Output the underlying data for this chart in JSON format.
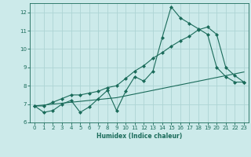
{
  "xlabel": "Humidex (Indice chaleur)",
  "x": [
    0,
    1,
    2,
    3,
    4,
    5,
    6,
    7,
    8,
    9,
    10,
    11,
    12,
    13,
    14,
    15,
    16,
    17,
    18,
    19,
    20,
    21,
    22,
    23
  ],
  "line1": [
    6.9,
    6.55,
    6.65,
    7.0,
    7.2,
    6.55,
    6.85,
    7.3,
    7.75,
    6.65,
    7.7,
    8.5,
    8.25,
    8.8,
    10.6,
    12.3,
    11.7,
    11.4,
    11.1,
    10.8,
    9.0,
    8.5,
    8.2,
    8.2
  ],
  "line2": [
    6.9,
    6.9,
    7.1,
    7.3,
    7.5,
    7.5,
    7.6,
    7.7,
    7.9,
    8.0,
    8.4,
    8.8,
    9.1,
    9.5,
    9.8,
    10.15,
    10.45,
    10.7,
    11.05,
    11.2,
    10.8,
    9.0,
    8.55,
    8.2
  ],
  "line3": [
    6.9,
    6.95,
    7.0,
    7.05,
    7.1,
    7.15,
    7.2,
    7.25,
    7.3,
    7.35,
    7.45,
    7.55,
    7.65,
    7.75,
    7.85,
    7.95,
    8.05,
    8.15,
    8.25,
    8.35,
    8.45,
    8.55,
    8.65,
    8.75
  ],
  "line_color": "#1a6b5a",
  "bg_color": "#cceaea",
  "grid_color": "#aed4d4",
  "ylim": [
    6,
    12.5
  ],
  "xlim": [
    -0.5,
    23.5
  ],
  "yticks": [
    6,
    7,
    8,
    9,
    10,
    11,
    12
  ],
  "xticks": [
    0,
    1,
    2,
    3,
    4,
    5,
    6,
    7,
    8,
    9,
    10,
    11,
    12,
    13,
    14,
    15,
    16,
    17,
    18,
    19,
    20,
    21,
    22,
    23
  ]
}
